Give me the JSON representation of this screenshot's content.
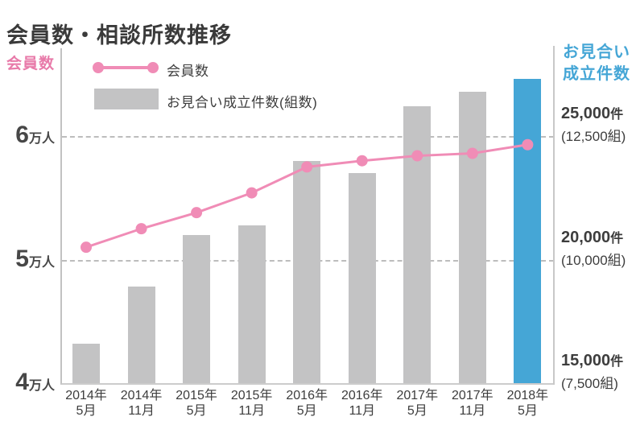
{
  "page": {
    "title": "会員数・相談所数推移"
  },
  "legend": {
    "line_label": "会員数",
    "bar_label": "お見合い成立件数(組数)"
  },
  "left_axis_title": "会員数",
  "right_axis_title_lines": [
    "お見合い",
    "成立件数"
  ],
  "colors": {
    "line_pink": "#f08cb6",
    "left_label_pink": "#e87aa9",
    "bar_gray": "#c3c3c4",
    "bar_highlight_blue": "#45a6d6",
    "right_title_blue": "#45a6d6",
    "text_dark": "#3d3d3d",
    "grid_gray": "#bdbdbd"
  },
  "chart_data": {
    "type": "combo (line + bar)",
    "title": "会員数・相談所数推移",
    "categories": [
      [
        "2014年",
        "5月"
      ],
      [
        "2014年",
        "11月"
      ],
      [
        "2015年",
        "5月"
      ],
      [
        "2015年",
        "11月"
      ],
      [
        "2016年",
        "5月"
      ],
      [
        "2016年",
        "11月"
      ],
      [
        "2017年",
        "5月"
      ],
      [
        "2017年",
        "11月"
      ],
      [
        "2018年",
        "5月"
      ]
    ],
    "series": [
      {
        "name": "会員数",
        "type": "line",
        "axis": "left",
        "color": "#f08cb6",
        "values": [
          51000,
          52500,
          53800,
          55400,
          57500,
          58000,
          58400,
          58600,
          59300
        ]
      },
      {
        "name": "お見合い成立件数(組数)",
        "type": "bar",
        "axis": "right",
        "color": "#c3c3c4",
        "last_bar_color": "#45a6d6",
        "values": [
          16600,
          18900,
          21000,
          21400,
          24000,
          23500,
          26200,
          26800,
          27300
        ]
      }
    ],
    "left_axis": {
      "title": "会員数",
      "unit": "万人",
      "min": 40000,
      "max": 67000,
      "ticks": [
        {
          "num": "6",
          "unit": "万人",
          "value": 60000
        },
        {
          "num": "5",
          "unit": "万人",
          "value": 50000
        },
        {
          "num": "4",
          "unit": "万人",
          "value": 40000
        }
      ],
      "grid_values": [
        60000,
        50000
      ]
    },
    "right_axis": {
      "title": "お見合い成立件数",
      "min": 15000,
      "max": 28500,
      "ticks": [
        {
          "main": "25,000",
          "unit": "件",
          "sub": "(12,500組)",
          "value": 25000
        },
        {
          "main": "20,000",
          "unit": "件",
          "sub": "(10,000組)",
          "value": 20000
        },
        {
          "main": "15,000",
          "unit": "件",
          "sub": "(7,500組)",
          "value": 15000
        }
      ]
    },
    "grid": "horizontal dashed, bars drawn above grid, line drawn above bars",
    "legend_position": "top-left inside"
  }
}
